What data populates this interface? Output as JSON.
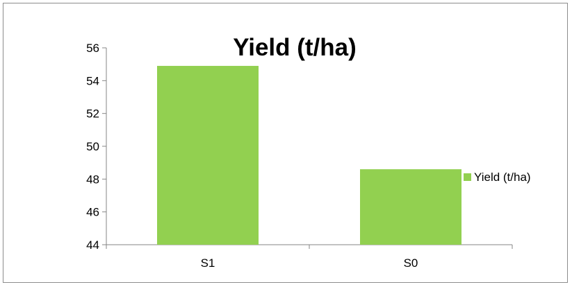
{
  "chart_data": {
    "type": "bar",
    "title": "Yield (t/ha)",
    "xlabel": "",
    "ylabel": "",
    "categories": [
      "S1",
      "S0"
    ],
    "series": [
      {
        "name": "Yield (t/ha)",
        "values": [
          54.9,
          48.6
        ]
      }
    ],
    "ylim": [
      44,
      56
    ],
    "yticks": [
      44,
      46,
      48,
      50,
      52,
      54,
      56
    ],
    "grid": false,
    "legend_position": "right",
    "bar_color": "#92D050"
  }
}
